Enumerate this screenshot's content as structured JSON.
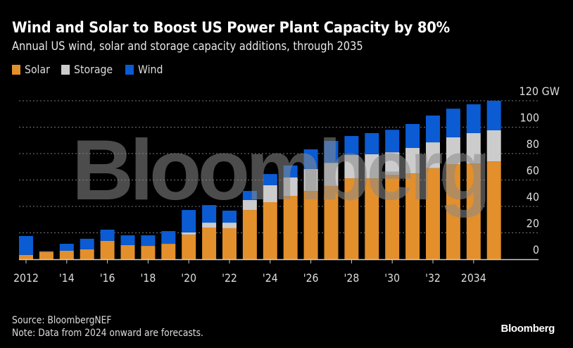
{
  "header": {
    "title": "Wind and Solar to Boost US Power Plant Capacity by 80%",
    "subtitle": "Annual US wind, solar and storage capacity additions, through 2035"
  },
  "legend": [
    {
      "name": "Solar",
      "color": "#e38f2b"
    },
    {
      "name": "Storage",
      "color": "#cccccc"
    },
    {
      "name": "Wind",
      "color": "#0b5bd3"
    }
  ],
  "footer": {
    "source": "Source: BloombergNEF",
    "note": "Note: Data from 2024 onward are forecasts.",
    "logo": "Bloomberg"
  },
  "watermark": "Bloomberg",
  "chart_data": {
    "type": "bar",
    "stacked": true,
    "title": "Wind and Solar to Boost US Power Plant Capacity by 80%",
    "subtitle": "Annual US wind, solar and storage capacity additions, through 2035",
    "xlabel": "",
    "ylabel": "GW",
    "ylim": [
      0,
      120
    ],
    "yticks": [
      0,
      20,
      40,
      60,
      80,
      100,
      120
    ],
    "ytick_labels": [
      "0",
      "20",
      "40",
      "60",
      "80",
      "100",
      "120 GW"
    ],
    "y_axis_position": "right",
    "grid": true,
    "legend_position": "top-left",
    "categories": [
      2012,
      2013,
      2014,
      2015,
      2016,
      2017,
      2018,
      2019,
      2020,
      2021,
      2022,
      2023,
      2024,
      2025,
      2026,
      2027,
      2028,
      2029,
      2030,
      2031,
      2032,
      2033,
      2034,
      2035
    ],
    "xtick_labels": [
      {
        "year": 2012,
        "label": "2012"
      },
      {
        "year": 2014,
        "label": "'14"
      },
      {
        "year": 2016,
        "label": "'16"
      },
      {
        "year": 2018,
        "label": "'18"
      },
      {
        "year": 2020,
        "label": "'20"
      },
      {
        "year": 2022,
        "label": "'22"
      },
      {
        "year": 2024,
        "label": "'24"
      },
      {
        "year": 2026,
        "label": "'26"
      },
      {
        "year": 2028,
        "label": "'28"
      },
      {
        "year": 2030,
        "label": "'30"
      },
      {
        "year": 2032,
        "label": "'32"
      },
      {
        "year": 2034,
        "label": "2034"
      }
    ],
    "series": [
      {
        "name": "Solar",
        "color": "#e38f2b",
        "values": [
          3.3,
          5.6,
          6.4,
          7.5,
          13.9,
          10.7,
          10.1,
          11.7,
          18.7,
          24.0,
          23.5,
          37.3,
          43.2,
          48.0,
          51.7,
          55.5,
          61.3,
          61.3,
          64.0,
          65.0,
          69.0,
          72.0,
          72.5,
          74.0
        ]
      },
      {
        "name": "Storage",
        "color": "#cccccc",
        "values": [
          0,
          0,
          0,
          0,
          0,
          0,
          0,
          0,
          1.6,
          3.7,
          4.2,
          7.5,
          12.8,
          14.0,
          16.6,
          17.5,
          17.7,
          18.2,
          17.0,
          19.3,
          19.5,
          20.3,
          23.0,
          23.6
        ]
      },
      {
        "name": "Wind",
        "color": "#0b5bd3",
        "values": [
          14.3,
          0.5,
          5.3,
          8.0,
          8.5,
          7.4,
          8.0,
          9.6,
          17.0,
          13.3,
          9.1,
          6.9,
          8.5,
          9.0,
          14.9,
          16.6,
          14.3,
          16.0,
          17.0,
          18.1,
          20.3,
          21.7,
          21.8,
          22.4
        ]
      }
    ]
  }
}
